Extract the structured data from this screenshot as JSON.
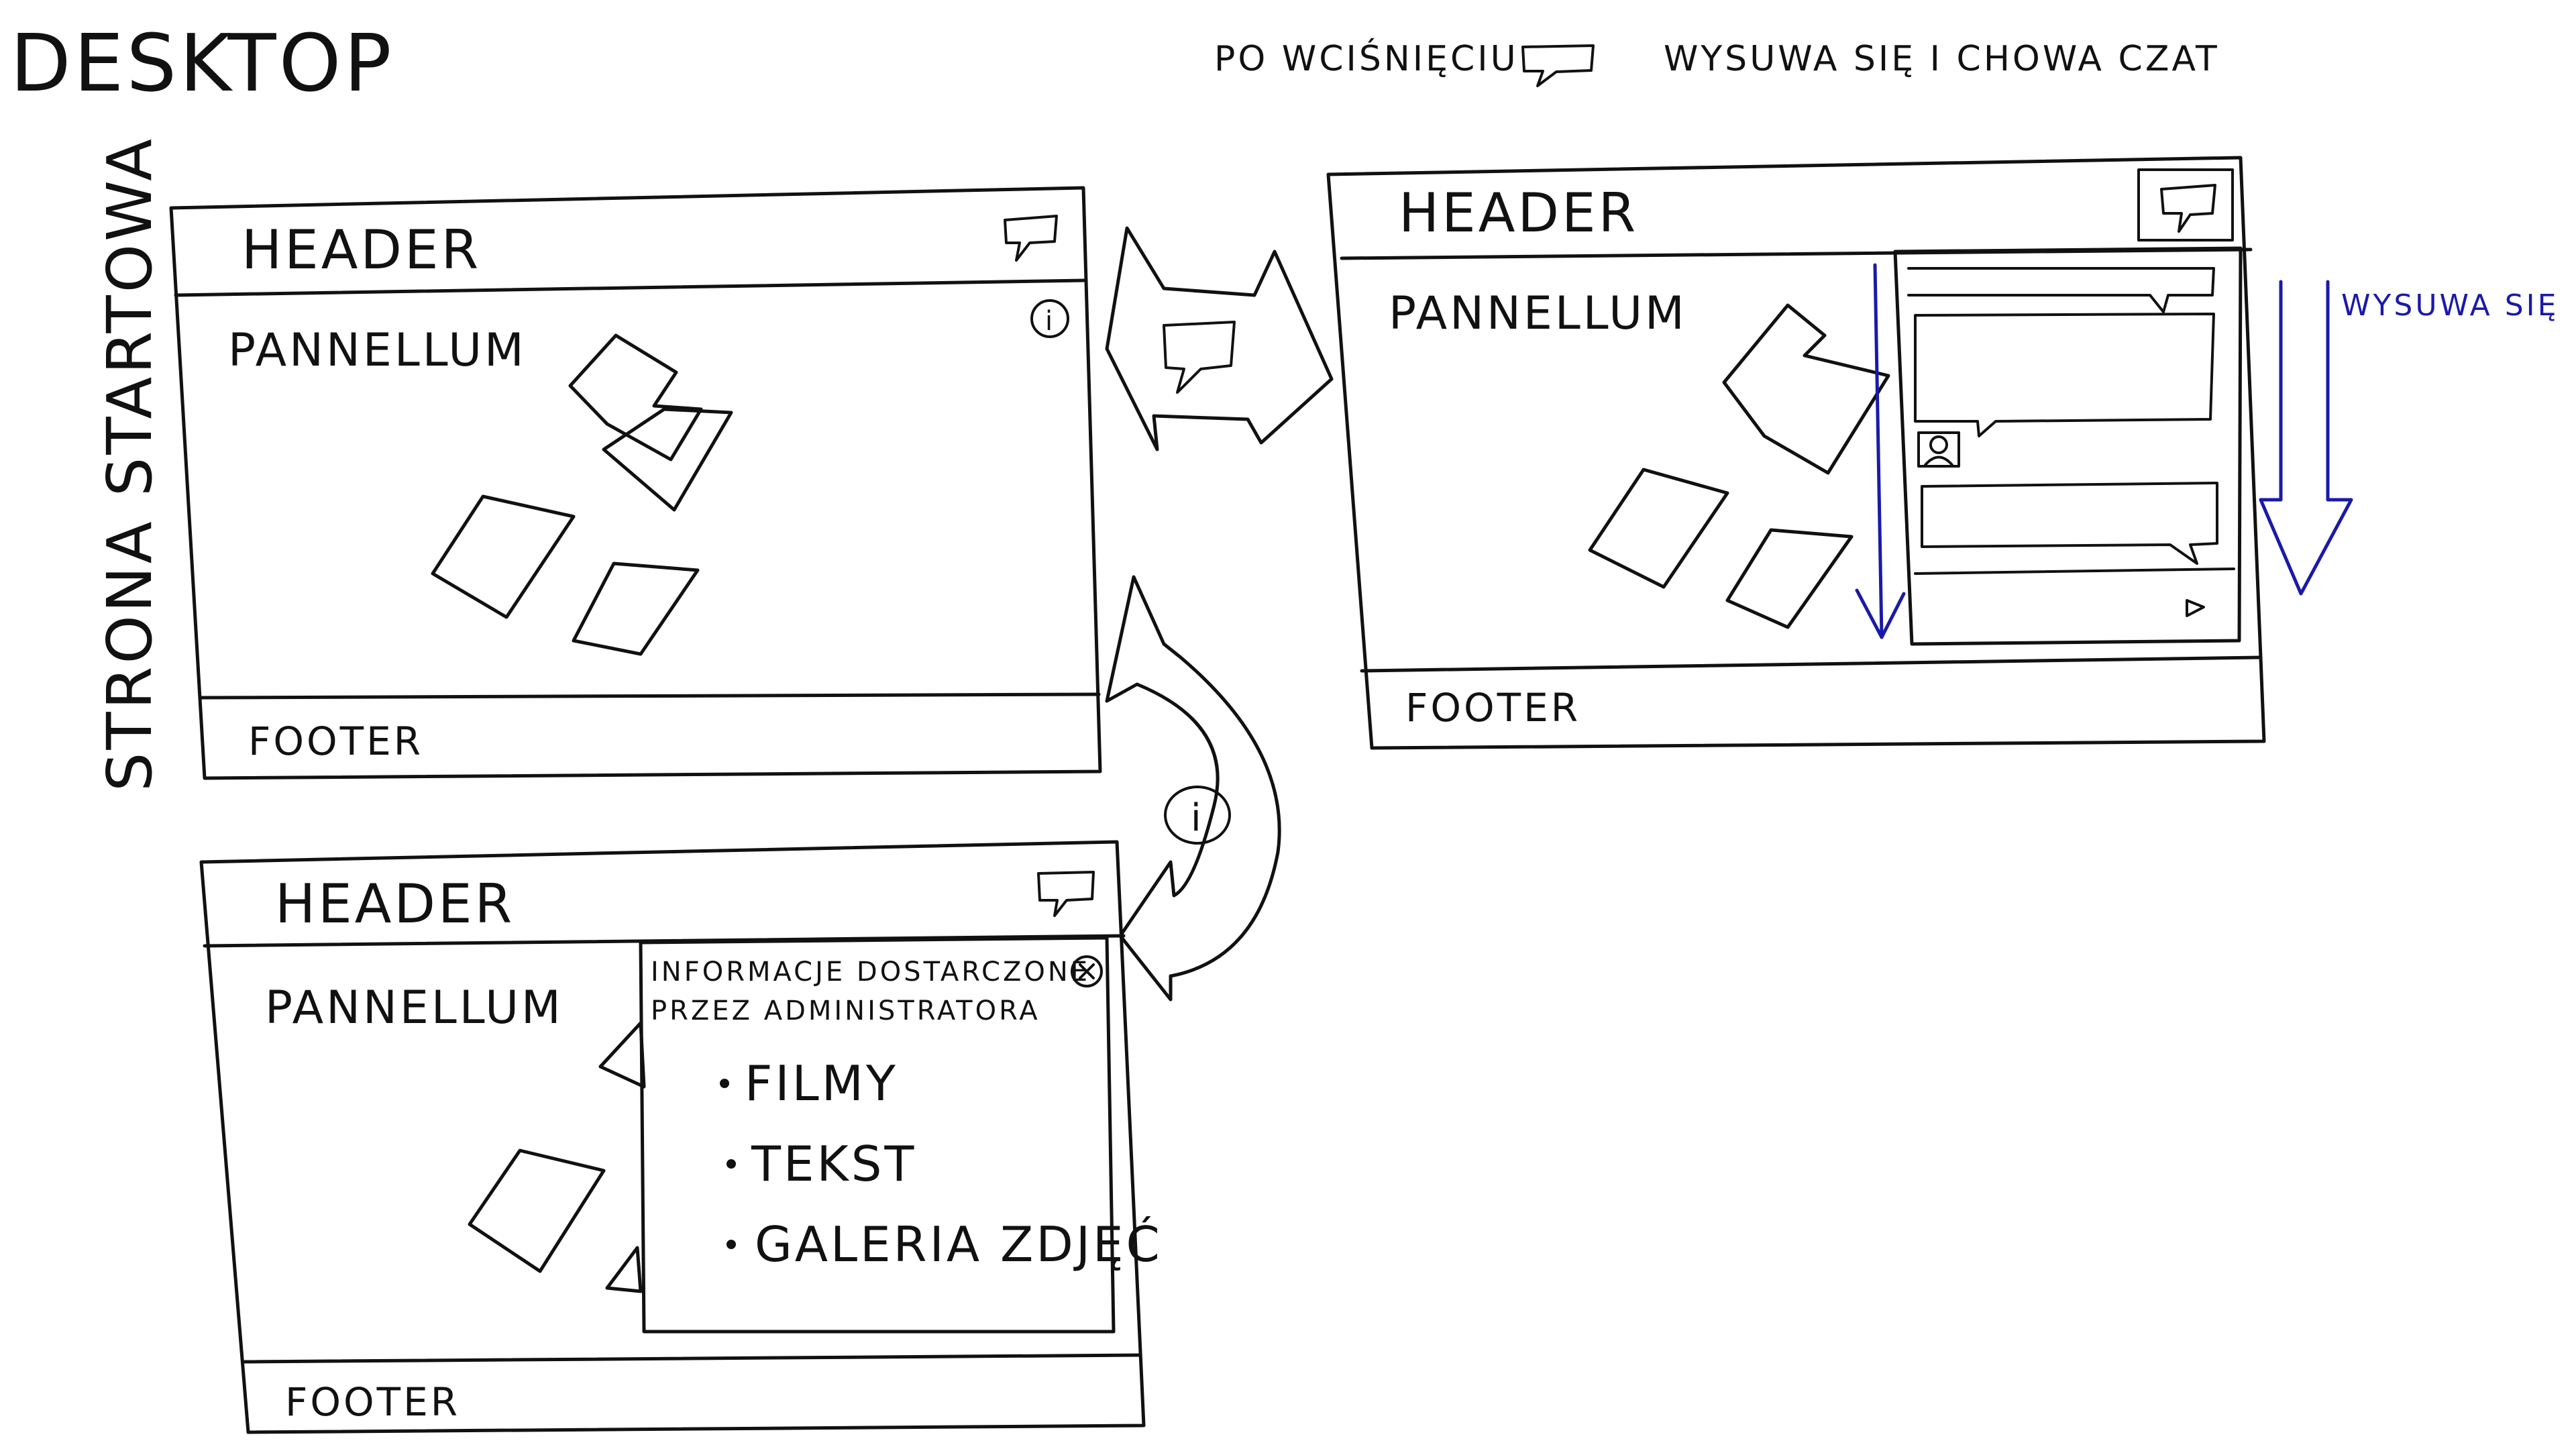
{
  "title": "DESKTOP",
  "top_note": "PO WCIŚNIĘCIU",
  "top_note_after": "WYSUWA SIĘ I CHOWA CZAT",
  "side_label": "STRONA STARTOWA",
  "screens": {
    "start": {
      "header": "HEADER",
      "content": "PANNELLUM",
      "footer": "FOOTER"
    },
    "chat": {
      "header": "HEADER",
      "content": "PANNELLUM",
      "footer": "FOOTER",
      "arrow_label": "WYSUWA SIĘ"
    },
    "info": {
      "header": "HEADER",
      "content": "PANNELLUM",
      "footer": "FOOTER",
      "panel_title_line1": "INFORMACJE DOSTARCZONE",
      "panel_title_line2": "PRZEZ ADMINISTRATORA",
      "items": [
        "FILMY",
        "TEKST",
        "GALERIA ZDJĘĆ"
      ]
    }
  },
  "arrow_icon": "i",
  "colors": {
    "ink": "#111111",
    "accent": "#1a1aa8"
  },
  "icons": [
    "chat-bubble-icon",
    "info-icon",
    "close-icon",
    "send-icon",
    "avatar-icon"
  ]
}
